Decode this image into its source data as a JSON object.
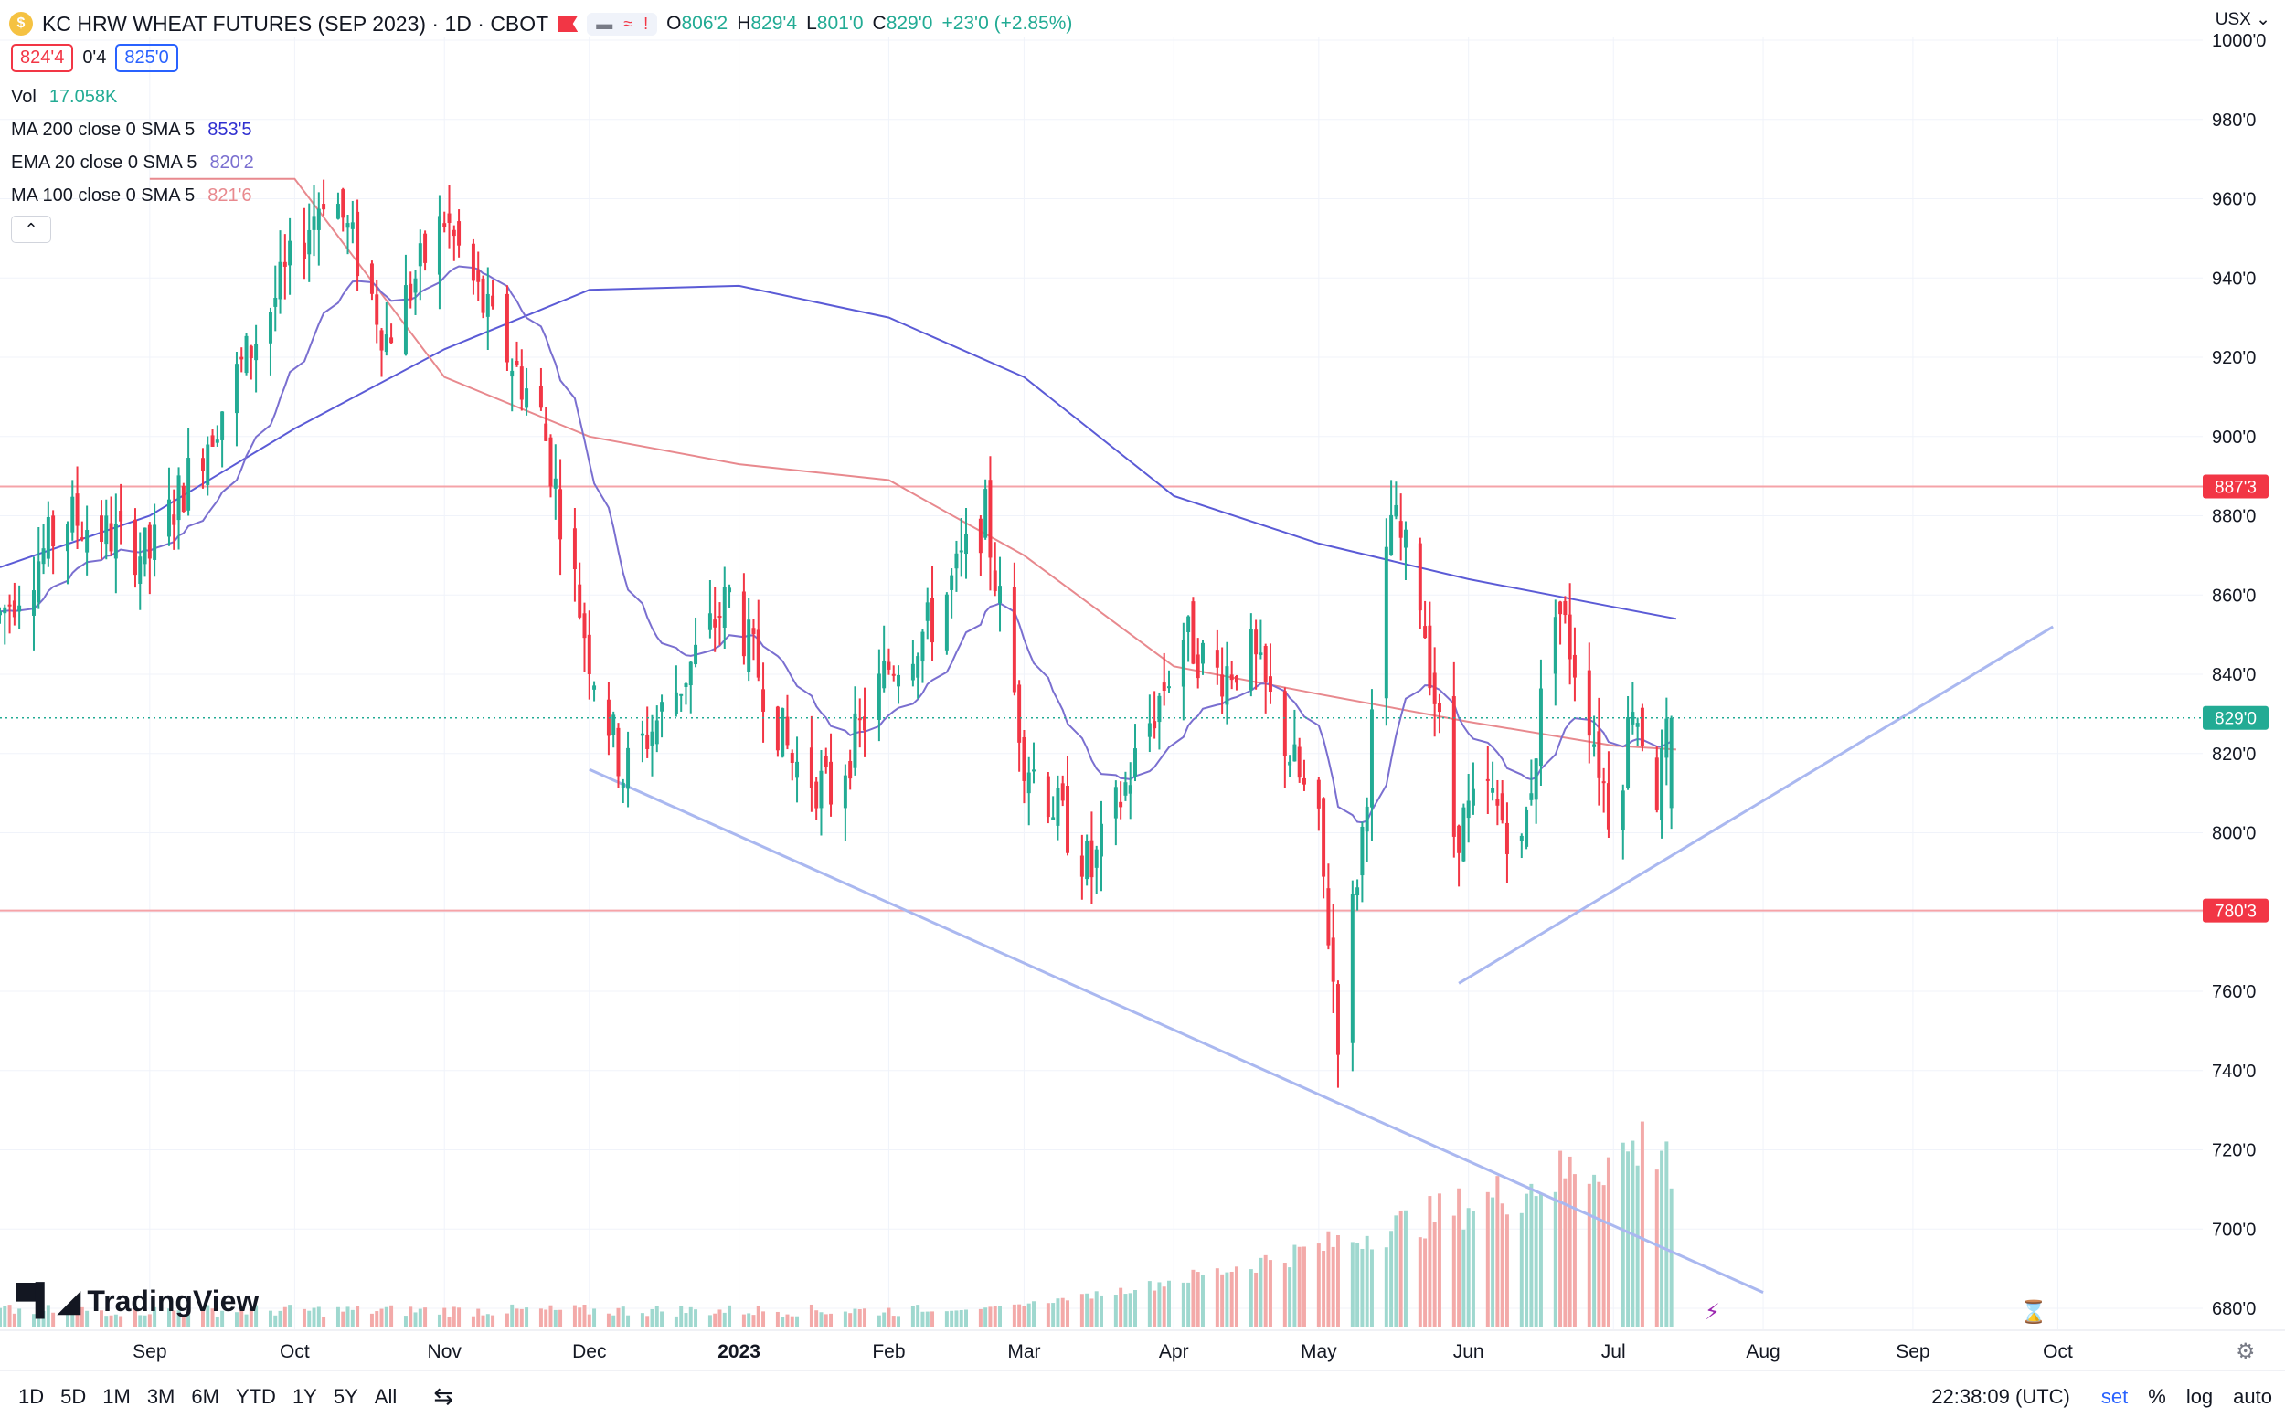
{
  "header": {
    "title": "KC HRW WHEAT FUTURES (SEP 2023) · 1D · CBOT",
    "ohlc": [
      {
        "k": "O",
        "v": "806'2"
      },
      {
        "k": "H",
        "v": "829'4"
      },
      {
        "k": "L",
        "v": "801'0"
      },
      {
        "k": "C",
        "v": "829'0"
      },
      {
        "k": "",
        "v": "+23'0 (+2.85%)"
      }
    ],
    "sell": "824'4",
    "spread": "0'4",
    "buy": "825'0",
    "unit": "USX"
  },
  "legend": {
    "vol_label": "Vol",
    "vol_value": "17.058K",
    "ma200_label": "MA 200 close 0 SMA 5",
    "ma200_value": "853'5",
    "ema20_label": "EMA 20 close 0 SMA 5",
    "ema20_value": "820'2",
    "ma100_label": "MA 100 close 0 SMA 5",
    "ma100_value": "821'6"
  },
  "watermark": "TradingView",
  "bottom_bar": {
    "timeframes": [
      "1D",
      "5D",
      "1M",
      "3M",
      "6M",
      "YTD",
      "1Y",
      "5Y",
      "All"
    ],
    "time": "22:38:09 (UTC)",
    "set": "set",
    "pct": "%",
    "log": "log",
    "auto": "auto"
  },
  "colors": {
    "up": "#22ab94",
    "down": "#f23645",
    "ma200": "#5b5bd6",
    "ema20": "#7a6fd0",
    "ma100": "#e8898e",
    "trend": "#aab8f0",
    "level": "#f5a3a8"
  },
  "chart_data": {
    "type": "candlestick",
    "y_axis": {
      "min": 680,
      "max": 1000,
      "tick_labels": [
        "680'0",
        "700'0",
        "720'0",
        "740'0",
        "760'0",
        "780'0",
        "800'0",
        "820'0",
        "840'0",
        "860'0",
        "880'0",
        "900'0",
        "920'0",
        "940'0",
        "960'0",
        "980'0",
        "1000'0"
      ]
    },
    "x_axis": {
      "months": [
        {
          "label": "Sep",
          "date": "2022-09-01"
        },
        {
          "label": "Oct",
          "date": "2022-10-01"
        },
        {
          "label": "Nov",
          "date": "2022-11-01"
        },
        {
          "label": "Dec",
          "date": "2022-12-01"
        },
        {
          "label": "2023",
          "date": "2023-01-01"
        },
        {
          "label": "Feb",
          "date": "2023-02-01"
        },
        {
          "label": "Mar",
          "date": "2023-03-01"
        },
        {
          "label": "Apr",
          "date": "2023-04-01"
        },
        {
          "label": "May",
          "date": "2023-05-01"
        },
        {
          "label": "Jun",
          "date": "2023-06-01"
        },
        {
          "label": "Jul",
          "date": "2023-07-01"
        },
        {
          "label": "Aug",
          "date": "2023-08-01"
        },
        {
          "label": "Sep",
          "date": "2023-09-01"
        },
        {
          "label": "Oct",
          "date": "2023-10-01"
        }
      ],
      "range": [
        "2022-08-01",
        "2023-10-31"
      ]
    },
    "last_price": {
      "value": 829.0,
      "label": "829'0"
    },
    "horizontal_levels": [
      {
        "value": 887.375,
        "label": "887'3"
      },
      {
        "value": 780.375,
        "label": "780'3"
      }
    ],
    "trend_lines": [
      {
        "from": [
          "2022-12-01",
          816
        ],
        "to": [
          "2023-08-01",
          684
        ]
      },
      {
        "from": [
          "2023-05-30",
          762
        ],
        "to": [
          "2023-09-30",
          852
        ]
      }
    ],
    "anchors": [
      [
        "2022-08-01",
        855
      ],
      [
        "2022-08-15",
        880
      ],
      [
        "2022-09-01",
        870
      ],
      [
        "2022-09-15",
        905
      ],
      [
        "2022-10-01",
        945
      ],
      [
        "2022-10-08",
        965
      ],
      [
        "2022-10-20",
        925
      ],
      [
        "2022-11-01",
        955
      ],
      [
        "2022-11-10",
        930
      ],
      [
        "2022-11-21",
        905
      ],
      [
        "2022-12-01",
        845
      ],
      [
        "2022-12-08",
        815
      ],
      [
        "2022-12-20",
        838
      ],
      [
        "2022-12-30",
        860
      ],
      [
        "2023-01-12",
        818
      ],
      [
        "2023-01-20",
        810
      ],
      [
        "2023-02-01",
        842
      ],
      [
        "2023-02-10",
        853
      ],
      [
        "2023-02-21",
        880
      ],
      [
        "2023-03-01",
        820
      ],
      [
        "2023-03-08",
        805
      ],
      [
        "2023-03-15",
        790
      ],
      [
        "2023-03-24",
        818
      ],
      [
        "2023-04-03",
        850
      ],
      [
        "2023-04-10",
        840
      ],
      [
        "2023-04-17",
        845
      ],
      [
        "2023-04-25",
        820
      ],
      [
        "2023-05-01",
        800
      ],
      [
        "2023-05-05",
        750
      ],
      [
        "2023-05-10",
        800
      ],
      [
        "2023-05-16",
        880
      ],
      [
        "2023-05-22",
        860
      ],
      [
        "2023-05-29",
        800
      ],
      [
        "2023-06-05",
        810
      ],
      [
        "2023-06-12",
        795
      ],
      [
        "2023-06-19",
        860
      ],
      [
        "2023-06-26",
        830
      ],
      [
        "2023-07-01",
        800
      ],
      [
        "2023-07-05",
        835
      ],
      [
        "2023-07-10",
        810
      ],
      [
        "2023-07-13",
        829
      ]
    ],
    "ma200_path": [
      [
        "2022-08-01",
        867
      ],
      [
        "2022-09-01",
        880
      ],
      [
        "2022-10-01",
        902
      ],
      [
        "2022-11-01",
        922
      ],
      [
        "2022-12-01",
        937
      ],
      [
        "2023-01-01",
        938
      ],
      [
        "2023-02-01",
        930
      ],
      [
        "2023-03-01",
        915
      ],
      [
        "2023-04-01",
        885
      ],
      [
        "2023-05-01",
        873
      ],
      [
        "2023-06-01",
        864
      ],
      [
        "2023-07-01",
        857
      ],
      [
        "2023-07-14",
        854
      ]
    ],
    "ma100_path": [
      [
        "2022-09-01",
        965
      ],
      [
        "2022-10-01",
        965
      ],
      [
        "2022-11-01",
        915
      ],
      [
        "2022-12-01",
        900
      ],
      [
        "2023-01-01",
        893
      ],
      [
        "2023-02-01",
        889
      ],
      [
        "2023-03-01",
        870
      ],
      [
        "2023-04-01",
        842
      ],
      [
        "2023-05-01",
        835
      ],
      [
        "2023-06-01",
        828
      ],
      [
        "2023-07-01",
        822
      ],
      [
        "2023-07-14",
        821
      ]
    ],
    "volume": {
      "max_label": "17.058K"
    }
  }
}
